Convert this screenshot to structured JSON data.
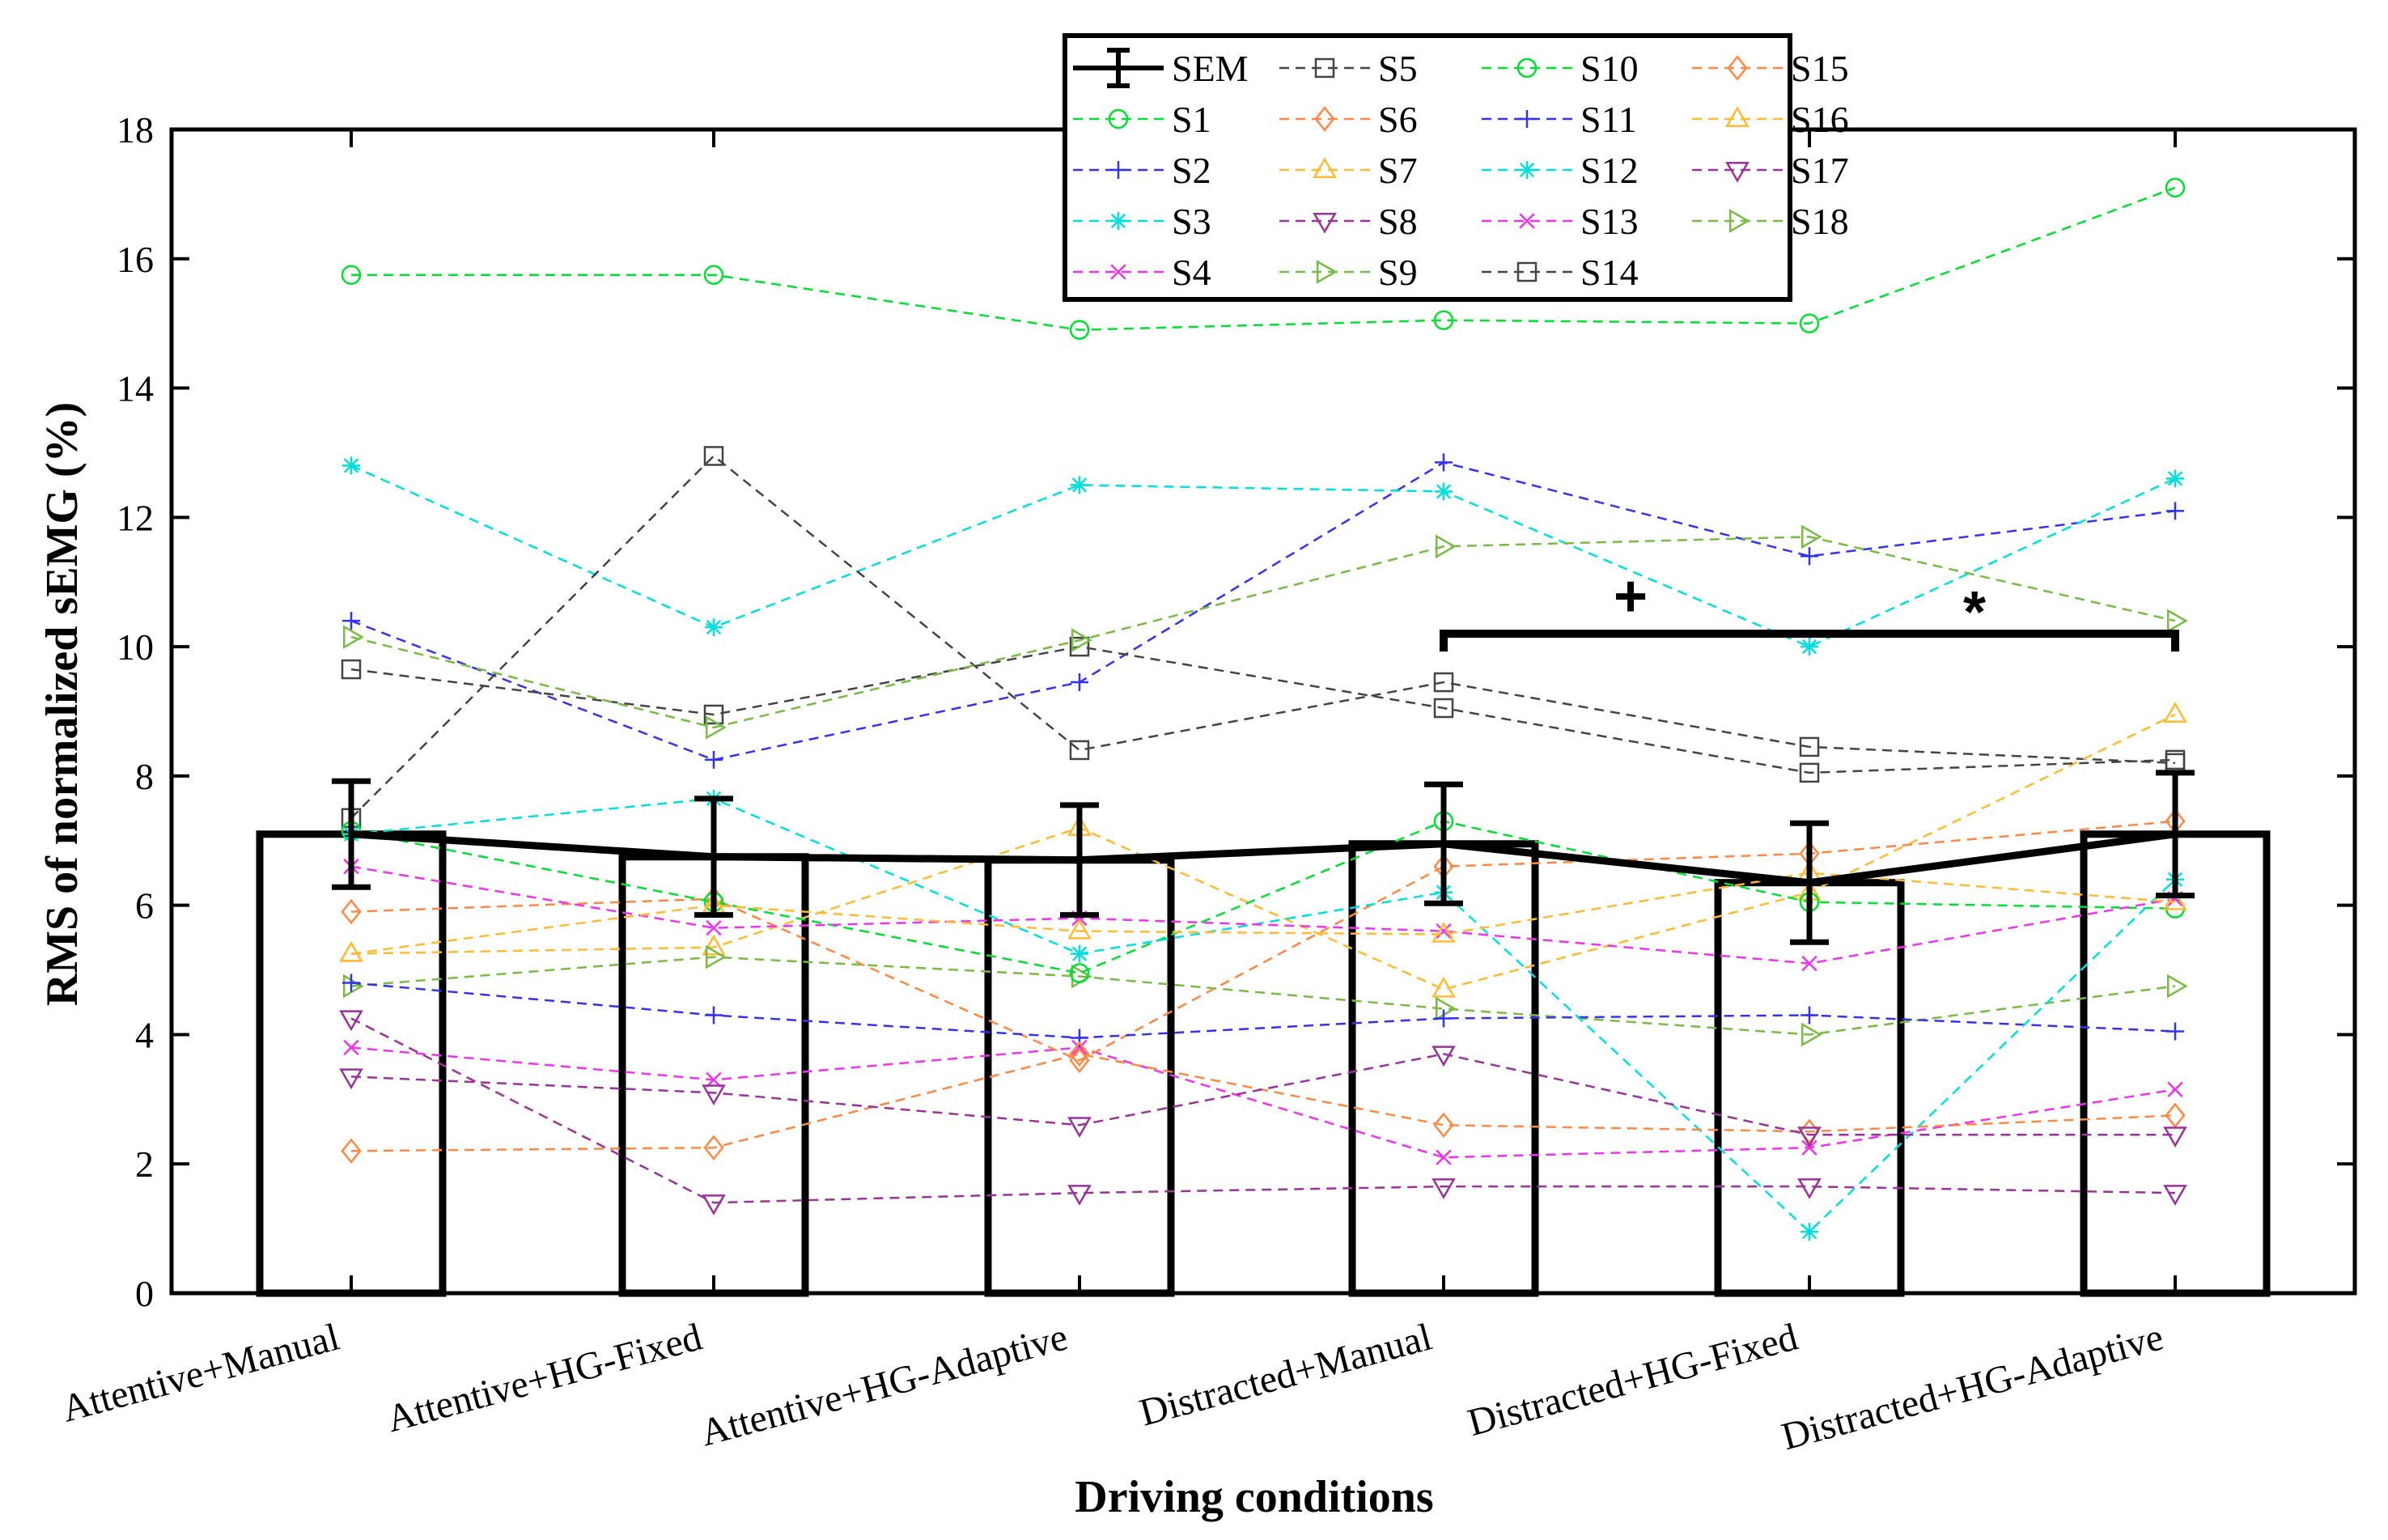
{
  "chart_data": {
    "type": "bar",
    "xlabel": "Driving conditions",
    "ylabel": "RMS of normalized sEMG (%)",
    "ylim": [
      0,
      18
    ],
    "yticks": [
      0,
      2,
      4,
      6,
      8,
      10,
      12,
      14,
      16,
      18
    ],
    "categories": [
      "Attentive+Manual",
      "Attentive+HG-Fixed",
      "Attentive+HG-Adaptive",
      "Distracted+Manual",
      "Distracted+HG-Fixed",
      "Distracted+HG-Adaptive"
    ],
    "bars": {
      "values": [
        7.1,
        6.75,
        6.7,
        6.95,
        6.35,
        7.1
      ]
    },
    "sem": {
      "name": "SEM",
      "values": [
        0.82,
        0.9,
        0.85,
        0.92,
        0.92,
        0.95
      ]
    },
    "legend_position": "top",
    "series": [
      {
        "name": "S1",
        "color": "#00dd33",
        "marker": "circle",
        "values": [
          15.75,
          15.75,
          14.9,
          15.05,
          15.0,
          17.1
        ]
      },
      {
        "name": "S2",
        "color": "#3333ee",
        "marker": "plus",
        "values": [
          10.4,
          8.25,
          9.45,
          12.85,
          11.4,
          12.1
        ]
      },
      {
        "name": "S3",
        "color": "#00dddd",
        "marker": "asterisk",
        "values": [
          12.8,
          10.3,
          12.5,
          12.4,
          10.0,
          12.6
        ]
      },
      {
        "name": "S4",
        "color": "#ee33ee",
        "marker": "x",
        "values": [
          3.8,
          3.3,
          3.8,
          2.1,
          2.25,
          3.15
        ]
      },
      {
        "name": "S5",
        "color": "#444444",
        "marker": "square",
        "values": [
          7.35,
          12.95,
          8.4,
          9.45,
          8.45,
          8.2
        ]
      },
      {
        "name": "S6",
        "color": "#ff8844",
        "marker": "diamond",
        "values": [
          5.9,
          6.1,
          3.6,
          6.6,
          6.8,
          7.3
        ]
      },
      {
        "name": "S7",
        "color": "#ffbb33",
        "marker": "triangle-up",
        "values": [
          5.25,
          5.35,
          7.2,
          4.7,
          6.2,
          8.95
        ]
      },
      {
        "name": "S8",
        "color": "#993399",
        "marker": "triangle-down",
        "values": [
          4.25,
          1.4,
          1.55,
          1.65,
          1.65,
          1.55
        ]
      },
      {
        "name": "S9",
        "color": "#77bb44",
        "marker": "triangle-right",
        "values": [
          4.75,
          5.2,
          4.9,
          4.4,
          4.0,
          4.75
        ]
      },
      {
        "name": "S10",
        "color": "#00dd33",
        "marker": "circle",
        "values": [
          7.15,
          6.05,
          4.95,
          7.3,
          6.05,
          5.95
        ]
      },
      {
        "name": "S11",
        "color": "#3333ee",
        "marker": "plus",
        "values": [
          4.8,
          4.3,
          3.95,
          4.25,
          4.3,
          4.05
        ]
      },
      {
        "name": "S12",
        "color": "#00dddd",
        "marker": "asterisk",
        "values": [
          7.1,
          7.65,
          5.25,
          6.2,
          0.95,
          6.4
        ]
      },
      {
        "name": "S13",
        "color": "#ee33ee",
        "marker": "x",
        "values": [
          6.6,
          5.65,
          5.8,
          5.6,
          5.1,
          6.1
        ]
      },
      {
        "name": "S14",
        "color": "#444444",
        "marker": "square",
        "values": [
          9.65,
          8.95,
          10.0,
          9.05,
          8.05,
          8.25
        ]
      },
      {
        "name": "S15",
        "color": "#ff8844",
        "marker": "diamond",
        "values": [
          2.2,
          2.25,
          3.7,
          2.6,
          2.5,
          2.75
        ]
      },
      {
        "name": "S16",
        "color": "#ffbb33",
        "marker": "triangle-up",
        "values": [
          5.25,
          6.0,
          5.6,
          5.55,
          6.5,
          6.05
        ]
      },
      {
        "name": "S17",
        "color": "#993399",
        "marker": "triangle-down",
        "values": [
          3.35,
          3.1,
          2.6,
          3.7,
          2.45,
          2.45
        ]
      },
      {
        "name": "S18",
        "color": "#77bb44",
        "marker": "triangle-right",
        "values": [
          10.15,
          8.75,
          10.1,
          11.55,
          11.7,
          10.4
        ]
      }
    ],
    "annotations": {
      "bracket_from": "Distracted+Manual",
      "bracket_to": "Distracted+HG-Adaptive",
      "bracket_y": 10.2,
      "plus_label": "+",
      "star_label": "*"
    }
  }
}
